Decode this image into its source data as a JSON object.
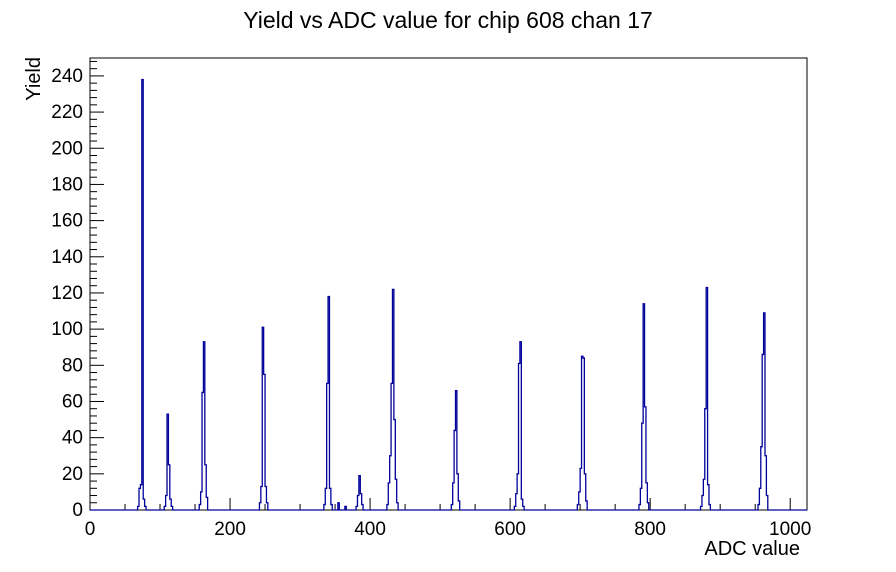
{
  "page": {
    "background": "#ffffff",
    "frame_color": "#000000"
  },
  "chart_data": {
    "type": "histogram",
    "title": "Yield vs ADC value for chip 608 chan 17",
    "xlabel": "ADC value",
    "ylabel": "Yield",
    "xlim": [
      0,
      1024
    ],
    "ylim": [
      0,
      249.9
    ],
    "x_major_ticks": [
      0,
      200,
      400,
      600,
      800,
      1000
    ],
    "x_minor_step": 50,
    "y_major_ticks": [
      0,
      20,
      40,
      60,
      80,
      100,
      120,
      140,
      160,
      180,
      200,
      220,
      240
    ],
    "y_minor_step": 4,
    "grid": false,
    "legend": "none",
    "line_color": "#00009a",
    "bin_width": 2,
    "clusters": [
      {
        "start": 68,
        "heights": [
          2,
          12,
          14,
          238,
          6,
          2
        ]
      },
      {
        "start": 106,
        "heights": [
          2,
          8,
          53,
          25,
          6,
          2
        ]
      },
      {
        "start": 156,
        "heights": [
          3,
          10,
          65,
          93,
          25,
          7
        ]
      },
      {
        "start": 242,
        "heights": [
          4,
          13,
          101,
          75,
          13,
          4
        ]
      },
      {
        "start": 334,
        "heights": [
          3,
          12,
          70,
          118,
          12,
          3
        ]
      },
      {
        "start": 380,
        "heights": [
          2,
          8,
          19,
          9,
          3
        ]
      },
      {
        "start": 424,
        "heights": [
          3,
          15,
          30,
          70,
          122,
          50,
          17,
          4
        ]
      },
      {
        "start": 516,
        "heights": [
          3,
          15,
          44,
          66,
          20,
          5
        ]
      },
      {
        "start": 606,
        "heights": [
          2,
          9,
          20,
          81,
          93,
          6,
          2
        ]
      },
      {
        "start": 696,
        "heights": [
          3,
          10,
          23,
          85,
          84,
          20,
          5
        ]
      },
      {
        "start": 784,
        "heights": [
          3,
          12,
          48,
          114,
          57,
          15,
          4
        ]
      },
      {
        "start": 872,
        "heights": [
          2,
          8,
          17,
          56,
          123,
          14,
          3
        ]
      },
      {
        "start": 954,
        "heights": [
          3,
          12,
          35,
          86,
          109,
          30,
          8
        ]
      }
    ],
    "single_bars": [
      {
        "adc": 354,
        "h": 4
      },
      {
        "adc": 364,
        "h": 2
      }
    ],
    "peaks": [
      {
        "adc": 75,
        "yield": 238
      },
      {
        "adc": 111,
        "yield": 53
      },
      {
        "adc": 163,
        "yield": 93
      },
      {
        "adc": 247,
        "yield": 101
      },
      {
        "adc": 341,
        "yield": 118
      },
      {
        "adc": 385,
        "yield": 19
      },
      {
        "adc": 433,
        "yield": 122
      },
      {
        "adc": 523,
        "yield": 66
      },
      {
        "adc": 615,
        "yield": 93
      },
      {
        "adc": 703,
        "yield": 85
      },
      {
        "adc": 791,
        "yield": 114
      },
      {
        "adc": 881,
        "yield": 123
      },
      {
        "adc": 963,
        "yield": 109
      }
    ]
  }
}
